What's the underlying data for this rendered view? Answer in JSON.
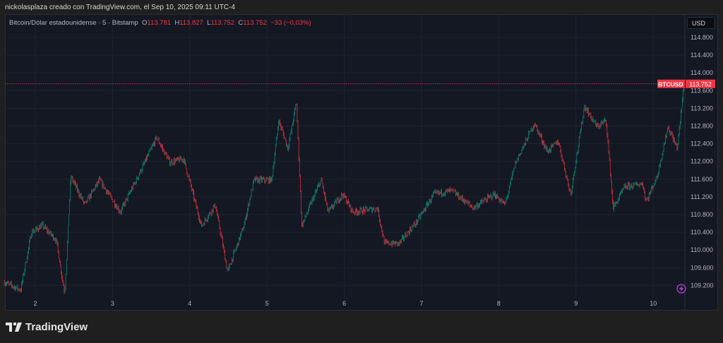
{
  "header": {
    "credit": "nickolasplaza creado con TradingView.com, el Sep 10, 2025 09:11 UTC-4"
  },
  "legend": {
    "symbol": "Bitcoin/Dólar estadounidense · 5 · Bitstamp",
    "o_label": "O",
    "o": "113.781",
    "h_label": "H",
    "h": "113.827",
    "l_label": "L",
    "l": "113.752",
    "c_label": "C",
    "c": "113.752",
    "change": "−33 (−0,03%)"
  },
  "currency_button": "USD",
  "price_badge": {
    "symbol": "BTCUSD",
    "price": "113.752"
  },
  "brand": "TradingView",
  "colors": {
    "up": "#089981",
    "down": "#f23645",
    "background": "#141823",
    "grid": "#1f2330"
  },
  "chart_data": {
    "type": "candlestick",
    "symbol": "BTCUSD",
    "interval": "5",
    "exchange": "Bitstamp",
    "last_price": 113752,
    "ylim": [
      108900,
      115200
    ],
    "xlim": [
      1.6,
      10.4
    ],
    "y_ticks": [
      114800,
      114400,
      114000,
      113600,
      113200,
      112800,
      112400,
      112000,
      111600,
      111200,
      110800,
      110400,
      110000,
      109600,
      109200
    ],
    "y_tick_labels": [
      "114.800",
      "114.400",
      "114.000",
      "113.600",
      "113.200",
      "112.800",
      "112.400",
      "112.000",
      "111.600",
      "111.200",
      "110.800",
      "110.400",
      "110.000",
      "109.600",
      "109.200"
    ],
    "x_ticks": [
      2,
      3,
      4,
      5,
      6,
      7,
      8,
      9,
      10
    ],
    "x_tick_labels": [
      "2",
      "3",
      "4",
      "5",
      "6",
      "7",
      "8",
      "9",
      "10"
    ],
    "grid": true,
    "price_path": [
      [
        1.6,
        109270
      ],
      [
        1.81,
        109100
      ],
      [
        1.95,
        110400
      ],
      [
        2.09,
        110550
      ],
      [
        2.27,
        110230
      ],
      [
        2.38,
        109030
      ],
      [
        2.46,
        111660
      ],
      [
        2.64,
        111020
      ],
      [
        2.83,
        111580
      ],
      [
        3.1,
        110860
      ],
      [
        3.33,
        111660
      ],
      [
        3.57,
        112540
      ],
      [
        3.74,
        111980
      ],
      [
        3.92,
        112060
      ],
      [
        4.15,
        110540
      ],
      [
        4.33,
        111020
      ],
      [
        4.49,
        109510
      ],
      [
        4.7,
        110540
      ],
      [
        4.83,
        111580
      ],
      [
        5.06,
        111580
      ],
      [
        5.15,
        112930
      ],
      [
        5.27,
        112300
      ],
      [
        5.38,
        113330
      ],
      [
        5.45,
        110540
      ],
      [
        5.56,
        111020
      ],
      [
        5.7,
        111580
      ],
      [
        5.79,
        110860
      ],
      [
        5.98,
        111260
      ],
      [
        6.11,
        110860
      ],
      [
        6.43,
        110940
      ],
      [
        6.52,
        110150
      ],
      [
        6.71,
        110150
      ],
      [
        6.93,
        110620
      ],
      [
        7.16,
        111260
      ],
      [
        7.39,
        111340
      ],
      [
        7.67,
        110950
      ],
      [
        7.94,
        111260
      ],
      [
        8.08,
        111020
      ],
      [
        8.22,
        111980
      ],
      [
        8.46,
        112860
      ],
      [
        8.63,
        112220
      ],
      [
        8.77,
        112460
      ],
      [
        8.93,
        111260
      ],
      [
        9.11,
        113250
      ],
      [
        9.27,
        112780
      ],
      [
        9.39,
        112930
      ],
      [
        9.48,
        110940
      ],
      [
        9.63,
        111420
      ],
      [
        9.86,
        111500
      ],
      [
        9.91,
        111100
      ],
      [
        10.05,
        111660
      ],
      [
        10.19,
        112780
      ],
      [
        10.31,
        112300
      ],
      [
        10.4,
        113752
      ]
    ]
  }
}
